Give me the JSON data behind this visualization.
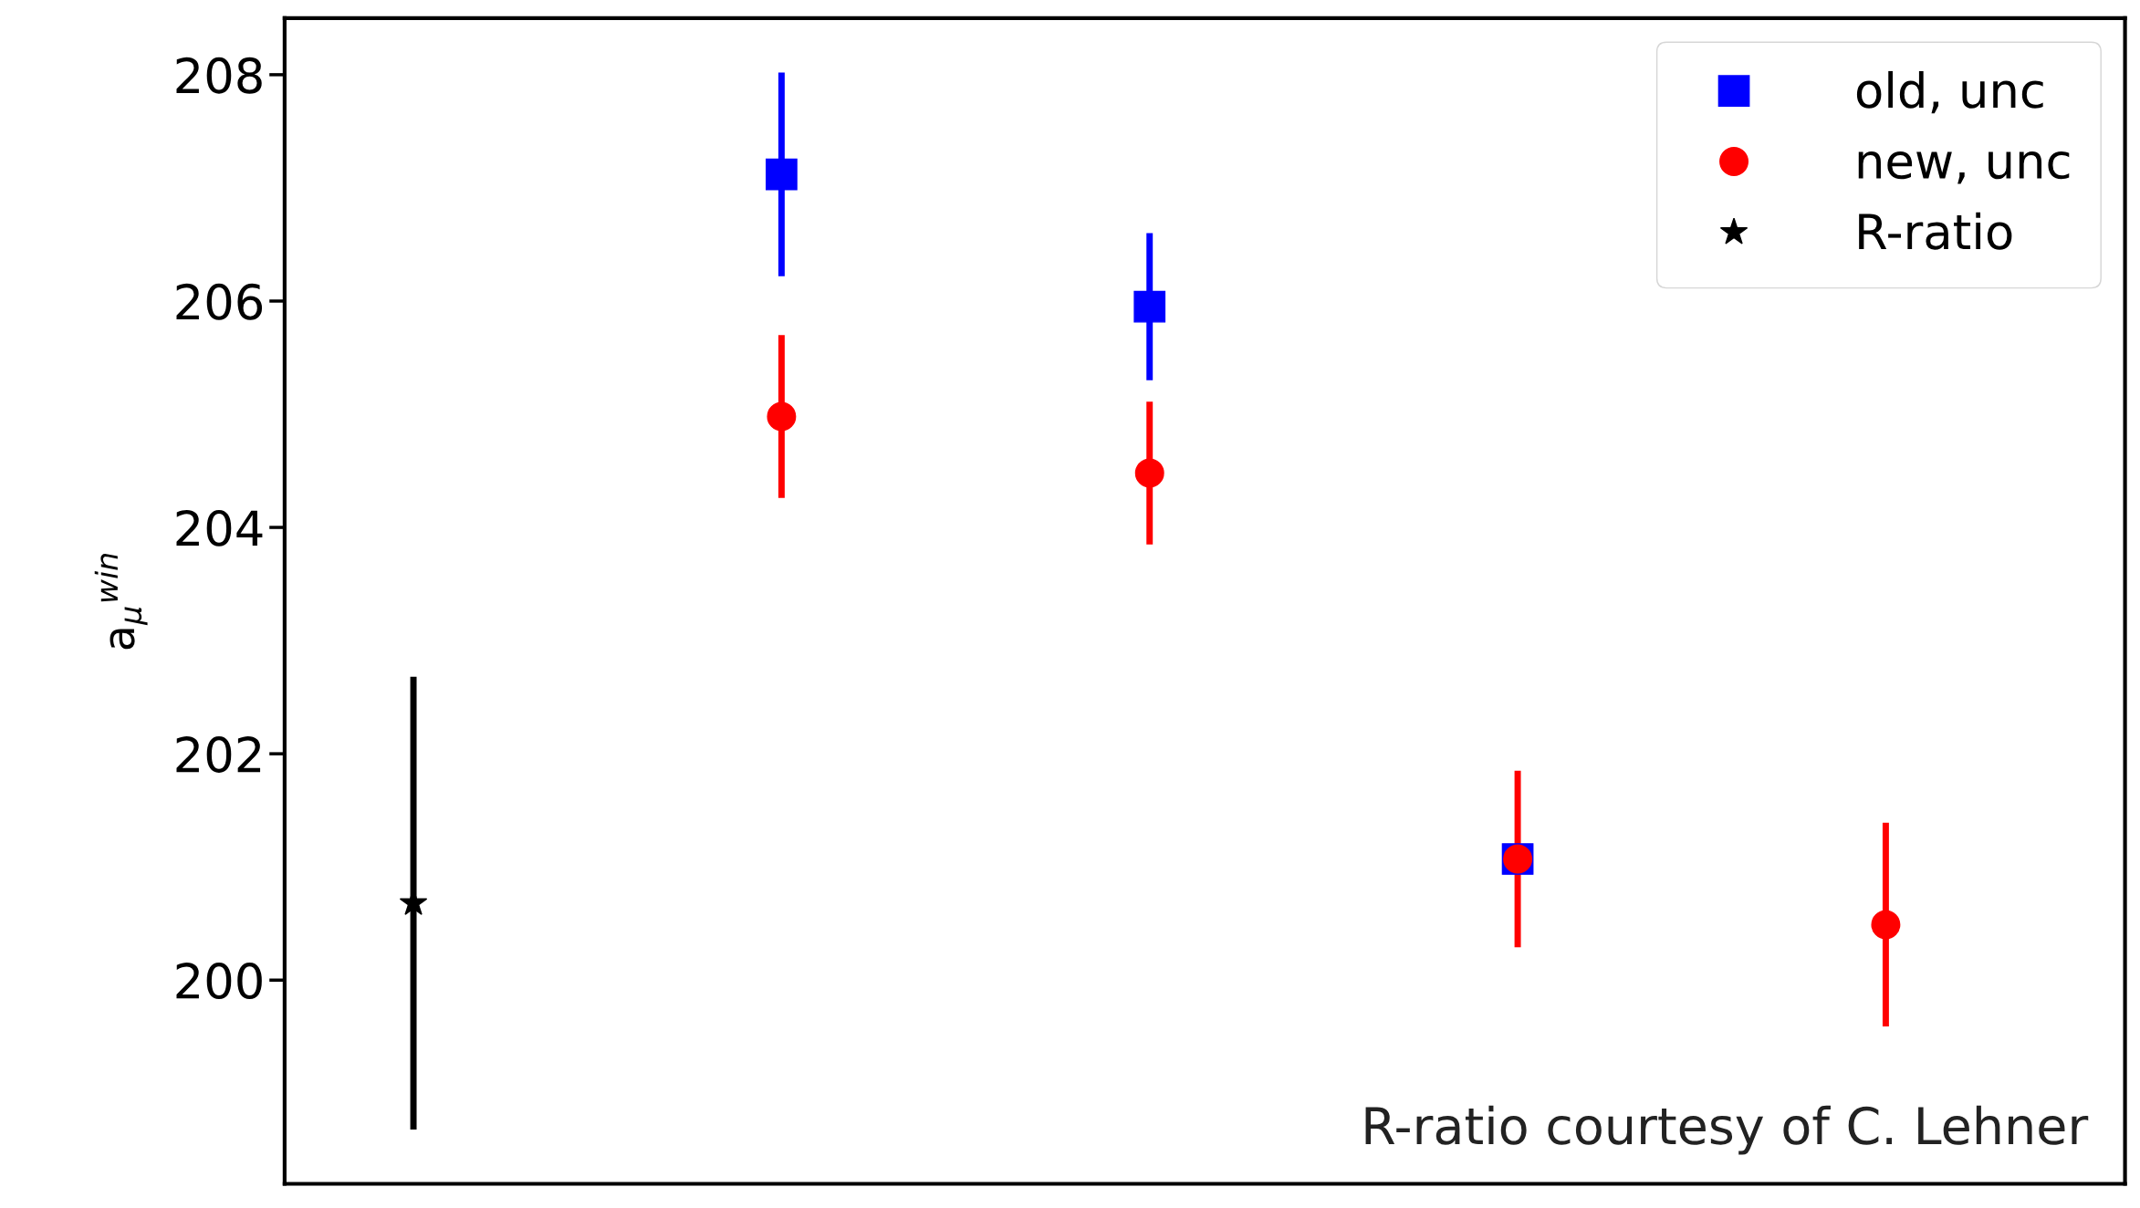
{
  "chart_data": {
    "type": "scatter",
    "ylabel": "a$_{μ}$$^{win}$",
    "categories": [
      null,
      null,
      null,
      null,
      null
    ],
    "series": [
      {
        "name": "old, unc",
        "color": "#0000ff",
        "marker": "square",
        "values": [
          null,
          207.12,
          205.95,
          201.07,
          null
        ],
        "errors": [
          null,
          0.9,
          0.65,
          null,
          null
        ]
      },
      {
        "name": "new, unc",
        "color": "#ff0000",
        "marker": "circle",
        "values": [
          null,
          204.98,
          204.48,
          201.07,
          200.49
        ],
        "errors": [
          null,
          0.72,
          0.63,
          0.78,
          0.9
        ]
      },
      {
        "name": "R-ratio",
        "color": "#000000",
        "marker": "star",
        "values": [
          200.68,
          null,
          null,
          null,
          null
        ],
        "errors": [
          2.0,
          null,
          null,
          null,
          null
        ]
      }
    ],
    "ylim": [
      198.2,
      208.5
    ],
    "yticks": [
      200,
      202,
      204,
      206,
      208
    ],
    "tick_labels": "y",
    "grid": false,
    "legend": "top right",
    "annotations": [
      "R-ratio courtesy of C. Lehner"
    ]
  }
}
